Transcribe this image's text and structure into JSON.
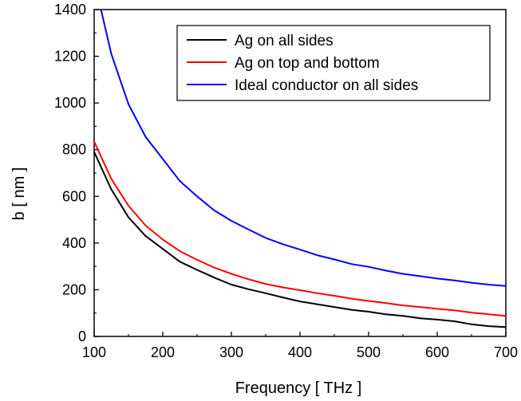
{
  "chart_data": {
    "type": "line",
    "title": "",
    "xlabel": "Frequency [ THz ]",
    "ylabel": "b [ nm ]",
    "xlim": [
      100,
      700
    ],
    "ylim": [
      0,
      1400
    ],
    "x_ticks": [
      100,
      200,
      300,
      400,
      500,
      600,
      700
    ],
    "y_ticks": [
      0,
      200,
      400,
      600,
      800,
      1000,
      1200,
      1400
    ],
    "legend_position": "top-right",
    "grid": false,
    "series": [
      {
        "name": "Ag on all sides",
        "color": "#000000",
        "x": [
          100,
          125,
          150,
          175,
          200,
          225,
          250,
          275,
          300,
          325,
          350,
          375,
          400,
          425,
          450,
          475,
          500,
          525,
          550,
          575,
          600,
          625,
          650,
          675,
          700
        ],
        "y": [
          790,
          630,
          510,
          430,
          375,
          320,
          285,
          252,
          222,
          202,
          185,
          167,
          150,
          138,
          126,
          114,
          106,
          95,
          88,
          78,
          72,
          65,
          52,
          44,
          40
        ]
      },
      {
        "name": "Ag on top and bottom",
        "color": "#ff0000",
        "x": [
          100,
          125,
          150,
          175,
          200,
          225,
          250,
          275,
          300,
          325,
          350,
          375,
          400,
          425,
          450,
          475,
          500,
          525,
          550,
          575,
          600,
          625,
          650,
          675,
          700
        ],
        "y": [
          835,
          675,
          560,
          475,
          415,
          365,
          328,
          295,
          268,
          245,
          225,
          210,
          198,
          185,
          174,
          162,
          152,
          143,
          133,
          126,
          118,
          112,
          102,
          95,
          88
        ]
      },
      {
        "name": "Ideal conductor on all sides",
        "color": "#0000ff",
        "x": [
          110,
          125,
          150,
          175,
          200,
          225,
          250,
          275,
          300,
          325,
          350,
          375,
          400,
          425,
          450,
          475,
          500,
          525,
          550,
          575,
          600,
          625,
          650,
          675,
          700
        ],
        "y": [
          1400,
          1210,
          995,
          855,
          760,
          665,
          600,
          540,
          495,
          458,
          422,
          395,
          372,
          348,
          330,
          310,
          298,
          282,
          268,
          258,
          248,
          240,
          230,
          222,
          216
        ]
      }
    ]
  }
}
